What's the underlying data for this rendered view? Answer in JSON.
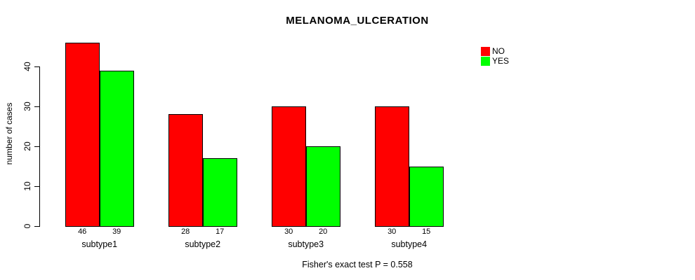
{
  "chart_data": {
    "type": "bar",
    "title": "MELANOMA_ULCERATION",
    "ylabel": "number of cases",
    "xlabel": "",
    "footer": "Fisher's exact test P = 0.558",
    "categories": [
      "subtype1",
      "subtype2",
      "subtype3",
      "subtype4"
    ],
    "series": [
      {
        "name": "NO",
        "color": "#ff0000",
        "values": [
          46,
          28,
          30,
          30
        ]
      },
      {
        "name": "YES",
        "color": "#00ff00",
        "values": [
          39,
          17,
          20,
          15
        ]
      }
    ],
    "bar_value_labels": [
      [
        "46",
        "39"
      ],
      [
        "28",
        "17"
      ],
      [
        "30",
        "20"
      ],
      [
        "30",
        "15"
      ]
    ],
    "y_ticks": [
      0,
      10,
      20,
      30,
      40
    ],
    "ylim": [
      0,
      46
    ],
    "grid": false,
    "legend_position": "right",
    "bar_border_color": "#000000",
    "axis_color": "#000000",
    "background_color": "#ffffff"
  }
}
